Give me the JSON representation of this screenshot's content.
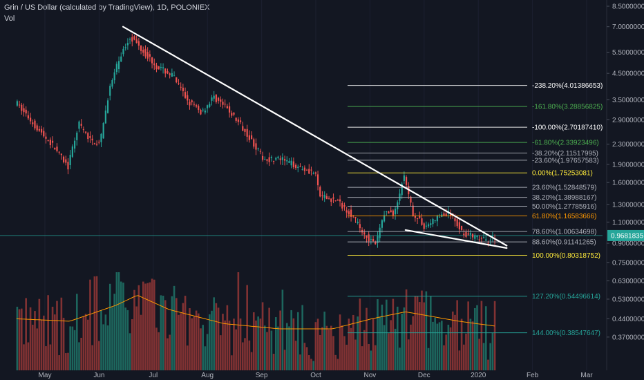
{
  "header": {
    "title": "Grin / US Dollar (calculated by TradingView), 1D, POLONIEX",
    "volume_label": "Vol"
  },
  "chart_data": {
    "type": "candlestick",
    "symbol": "Grin / US Dollar",
    "interval": "1D",
    "exchange": "POLONIEX",
    "price_scale": "log",
    "ylim": [
      0.27,
      8.5
    ],
    "y_ticks": [
      "8.50000000",
      "7.00000000",
      "5.50000000",
      "4.50000000",
      "3.50000000",
      "2.90000000",
      "2.30000000",
      "1.90000000",
      "1.60000000",
      "1.30000000",
      "1.10000000",
      "0.90000000",
      "0.75000000",
      "0.63000000",
      "0.53000000",
      "0.44000000",
      "0.37000000"
    ],
    "x_ticks": [
      "May",
      "Jun",
      "Jul",
      "Aug",
      "Sep",
      "Oct",
      "Nov",
      "Dec",
      "2020",
      "Feb",
      "Mar"
    ],
    "last_price": "0.96818351",
    "price_path": [
      [
        "2019-04-15",
        3.4
      ],
      [
        "2019-04-28",
        2.6
      ],
      [
        "2019-05-06",
        2.25
      ],
      [
        "2019-05-14",
        1.85
      ],
      [
        "2019-05-20",
        2.8
      ],
      [
        "2019-05-26",
        2.4
      ],
      [
        "2019-06-01",
        2.3
      ],
      [
        "2019-06-06",
        3.8
      ],
      [
        "2019-06-12",
        5.2
      ],
      [
        "2019-06-18",
        6.4
      ],
      [
        "2019-06-25",
        5.6
      ],
      [
        "2019-07-03",
        4.8
      ],
      [
        "2019-07-12",
        4.4
      ],
      [
        "2019-07-20",
        3.5
      ],
      [
        "2019-07-28",
        3.1
      ],
      [
        "2019-08-04",
        3.6
      ],
      [
        "2019-08-12",
        3.2
      ],
      [
        "2019-08-22",
        2.6
      ],
      [
        "2019-09-01",
        2.0
      ],
      [
        "2019-09-10",
        2.0
      ],
      [
        "2019-09-22",
        1.85
      ],
      [
        "2019-09-30",
        1.75
      ],
      [
        "2019-10-03",
        1.4
      ],
      [
        "2019-10-12",
        1.35
      ],
      [
        "2019-10-20",
        1.2
      ],
      [
        "2019-10-27",
        1.0
      ],
      [
        "2019-11-03",
        0.88
      ],
      [
        "2019-11-08",
        1.2
      ],
      [
        "2019-11-14",
        1.2
      ],
      [
        "2019-11-19",
        1.7
      ],
      [
        "2019-11-24",
        1.2
      ],
      [
        "2019-12-01",
        1.05
      ],
      [
        "2019-12-08",
        1.15
      ],
      [
        "2019-12-15",
        1.2
      ],
      [
        "2019-12-22",
        1.0
      ],
      [
        "2019-12-29",
        0.95
      ],
      [
        "2020-01-05",
        0.92
      ],
      [
        "2020-01-10",
        0.97
      ]
    ],
    "volume_path": [
      [
        "2019-04-15",
        0.44
      ],
      [
        "2019-05-15",
        0.43
      ],
      [
        "2019-06-10",
        0.5
      ],
      [
        "2019-06-22",
        0.55
      ],
      [
        "2019-07-10",
        0.48
      ],
      [
        "2019-08-10",
        0.42
      ],
      [
        "2019-09-10",
        0.4
      ],
      [
        "2019-10-10",
        0.4
      ],
      [
        "2019-11-01",
        0.44
      ],
      [
        "2019-11-20",
        0.47
      ],
      [
        "2019-12-20",
        0.43
      ],
      [
        "2020-01-10",
        0.41
      ]
    ],
    "trendlines": [
      {
        "from": [
          "2019-06-14",
          7.0
        ],
        "to": [
          "2020-01-16",
          0.88
        ]
      },
      {
        "from": [
          "2019-11-20",
          1.02
        ],
        "to": [
          "2020-01-16",
          0.86
        ]
      }
    ],
    "current_price_line": 0.968,
    "fib_levels": [
      {
        "label": "-238.20%(4.01386653)",
        "value": 4.01386653,
        "color": "#ffffff"
      },
      {
        "label": "-161.80%(3.28856825)",
        "value": 3.28856825,
        "color": "#4caf50"
      },
      {
        "label": "-100.00%(2.70187410)",
        "value": 2.7018741,
        "color": "#ffffff"
      },
      {
        "label": "-61.80%(2.33923496)",
        "value": 2.33923496,
        "color": "#4caf50"
      },
      {
        "label": "-38.20%(2.11517995)",
        "value": 2.11517995,
        "color": "#b2b5be"
      },
      {
        "label": "-23.60%(1.97657583)",
        "value": 1.97657583,
        "color": "#b2b5be"
      },
      {
        "label": "0.00%(1.75253081)",
        "value": 1.75253081,
        "color": "#ffeb3b"
      },
      {
        "label": "23.60%(1.52848579)",
        "value": 1.52848579,
        "color": "#b2b5be"
      },
      {
        "label": "38.20%(1.38988167)",
        "value": 1.38988167,
        "color": "#b2b5be"
      },
      {
        "label": "50.00%(1.27785916)",
        "value": 1.27785916,
        "color": "#b2b5be"
      },
      {
        "label": "61.80%(1.16583666)",
        "value": 1.16583666,
        "color": "#ff9800"
      },
      {
        "label": "78.60%(1.00634698)",
        "value": 1.00634698,
        "color": "#b2b5be"
      },
      {
        "label": "88.60%(0.91141265)",
        "value": 0.91141265,
        "color": "#b2b5be"
      },
      {
        "label": "100.00%(0.80318752)",
        "value": 0.80318752,
        "color": "#ffeb3b"
      },
      {
        "label": "127.20%(0.54496614)",
        "value": 0.54496614,
        "color": "#26a69a"
      },
      {
        "label": "144.00%(0.38547647)",
        "value": 0.38547647,
        "color": "#26a69a"
      }
    ],
    "colors": {
      "background": "#131722",
      "up": "#26a69a",
      "down": "#ef5350",
      "volume_up": "#1f6f64",
      "volume_down": "#8e3535",
      "trendline": "#ffffff",
      "ma_line": "#ff9800",
      "price_badge": "#26a69a"
    }
  }
}
